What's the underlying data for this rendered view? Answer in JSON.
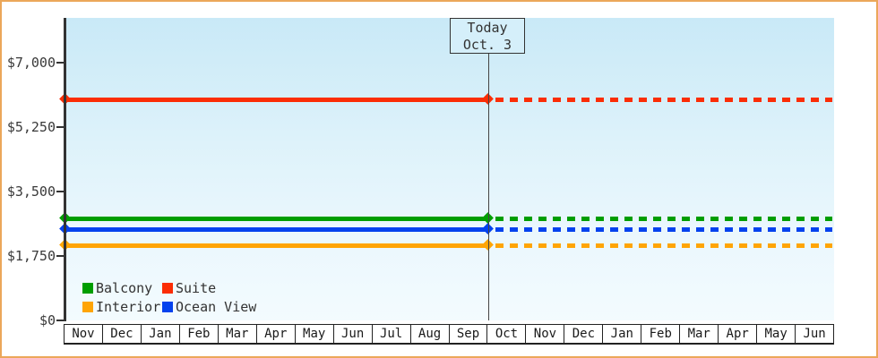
{
  "chart_data": {
    "type": "line",
    "title": "",
    "description": "Cabin price history by month; flat price lines, solid up to today then dashed projection",
    "x_axis": {
      "label": "",
      "months": [
        "Nov",
        "Dec",
        "Jan",
        "Feb",
        "Mar",
        "Apr",
        "May",
        "Jun",
        "Jul",
        "Aug",
        "Sep",
        "Oct",
        "Nov",
        "Dec",
        "Jan",
        "Feb",
        "Mar",
        "Apr",
        "May",
        "Jun"
      ]
    },
    "y_axis": {
      "label": "",
      "range": [
        0,
        8200
      ],
      "ticks": [
        {
          "label": "$0",
          "value": 0
        },
        {
          "label": "$1,750",
          "value": 1750
        },
        {
          "label": "$3,500",
          "value": 3500
        },
        {
          "label": "$5,250",
          "value": 5250
        },
        {
          "label": "$7,000",
          "value": 7000
        }
      ]
    },
    "series": [
      {
        "name": "Balcony",
        "color": "#009E00",
        "value": 2770,
        "constant": true
      },
      {
        "name": "Suite",
        "color": "#FB2D05",
        "value": 6000,
        "constant": true
      },
      {
        "name": "Interior",
        "color": "#FFA505",
        "value": 2040,
        "constant": true
      },
      {
        "name": "Ocean View",
        "color": "#0442EE",
        "value": 2480,
        "constant": true
      }
    ],
    "today": {
      "line1": "Today",
      "line2": "Oct. 3",
      "month_index": 11
    },
    "legend": {
      "position": "inside-plot-bottom-left",
      "rows": [
        [
          "Balcony",
          "Suite"
        ],
        [
          "Interior",
          "Ocean View"
        ]
      ]
    },
    "style": {
      "frame_border_color": "#EBA75A",
      "plot_bg_top": "#C9E9F7",
      "plot_bg_bottom": "#F3FBFE",
      "axis_color": "#333333",
      "grid": "off"
    }
  }
}
